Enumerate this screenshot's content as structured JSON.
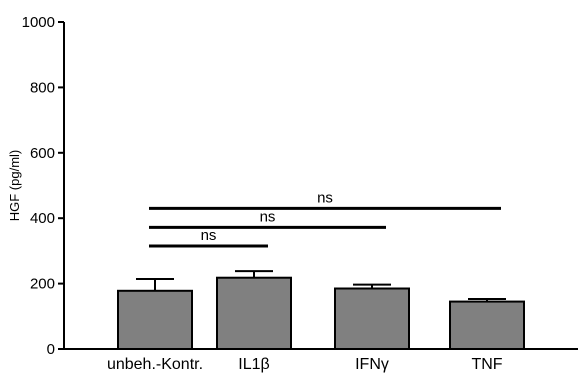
{
  "chart_data": {
    "type": "bar",
    "title": "",
    "xlabel": "",
    "ylabel": "HGF (pg/ml)",
    "ylim": [
      0,
      1000
    ],
    "yticks": [
      0,
      200,
      400,
      600,
      800,
      1000
    ],
    "grid": false,
    "categories": [
      "unbeh.-Kontr.",
      "IL1β",
      "IFNγ",
      "TNF"
    ],
    "values": [
      178,
      218,
      185,
      145
    ],
    "errors": [
      36,
      20,
      12,
      8
    ],
    "bar_color": "#808080",
    "significance": [
      {
        "from": 0,
        "to": 1,
        "y": 315,
        "label": "ns"
      },
      {
        "from": 0,
        "to": 2,
        "y": 372,
        "label": "ns"
      },
      {
        "from": 0,
        "to": 3,
        "y": 430,
        "label": "ns"
      }
    ]
  }
}
